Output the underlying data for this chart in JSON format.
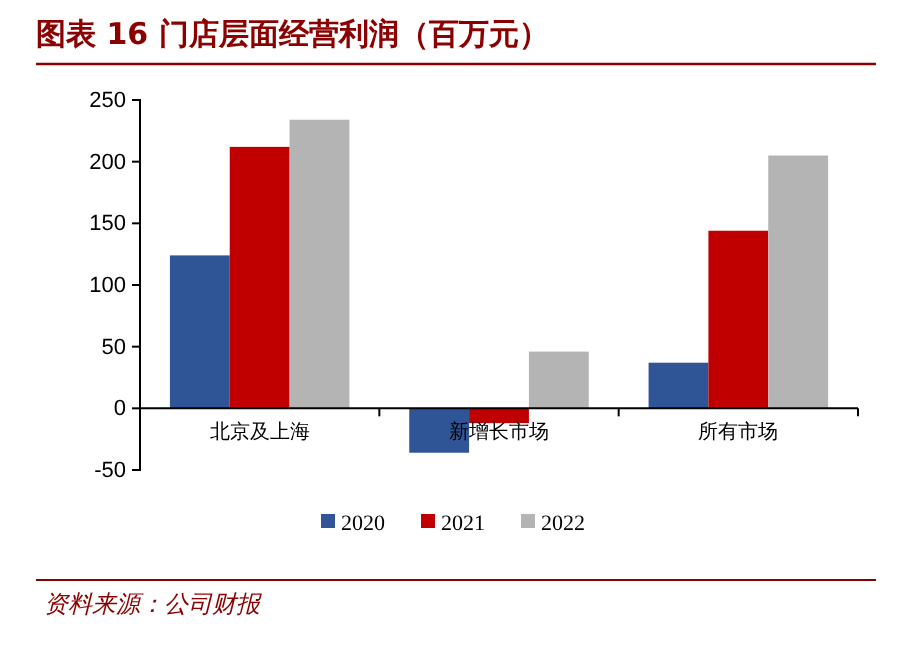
{
  "chart_data": {
    "type": "bar",
    "title": "图表 16  门店层面经营利润（百万元）",
    "categories": [
      "北京及上海",
      "新增长市场",
      "所有市场"
    ],
    "series": [
      {
        "name": "2020",
        "color": "#2f5597",
        "values": [
          124,
          -36,
          37
        ]
      },
      {
        "name": "2021",
        "color": "#c00000",
        "values": [
          212,
          -12,
          144
        ]
      },
      {
        "name": "2022",
        "color": "#b4b4b4",
        "values": [
          234,
          46,
          205
        ]
      }
    ],
    "ylim": [
      -50,
      250
    ],
    "yticks": [
      -50,
      0,
      50,
      100,
      150,
      200,
      250
    ],
    "grid": false,
    "legend": "bottom",
    "annotations": [
      "资料来源：公司财报"
    ]
  }
}
